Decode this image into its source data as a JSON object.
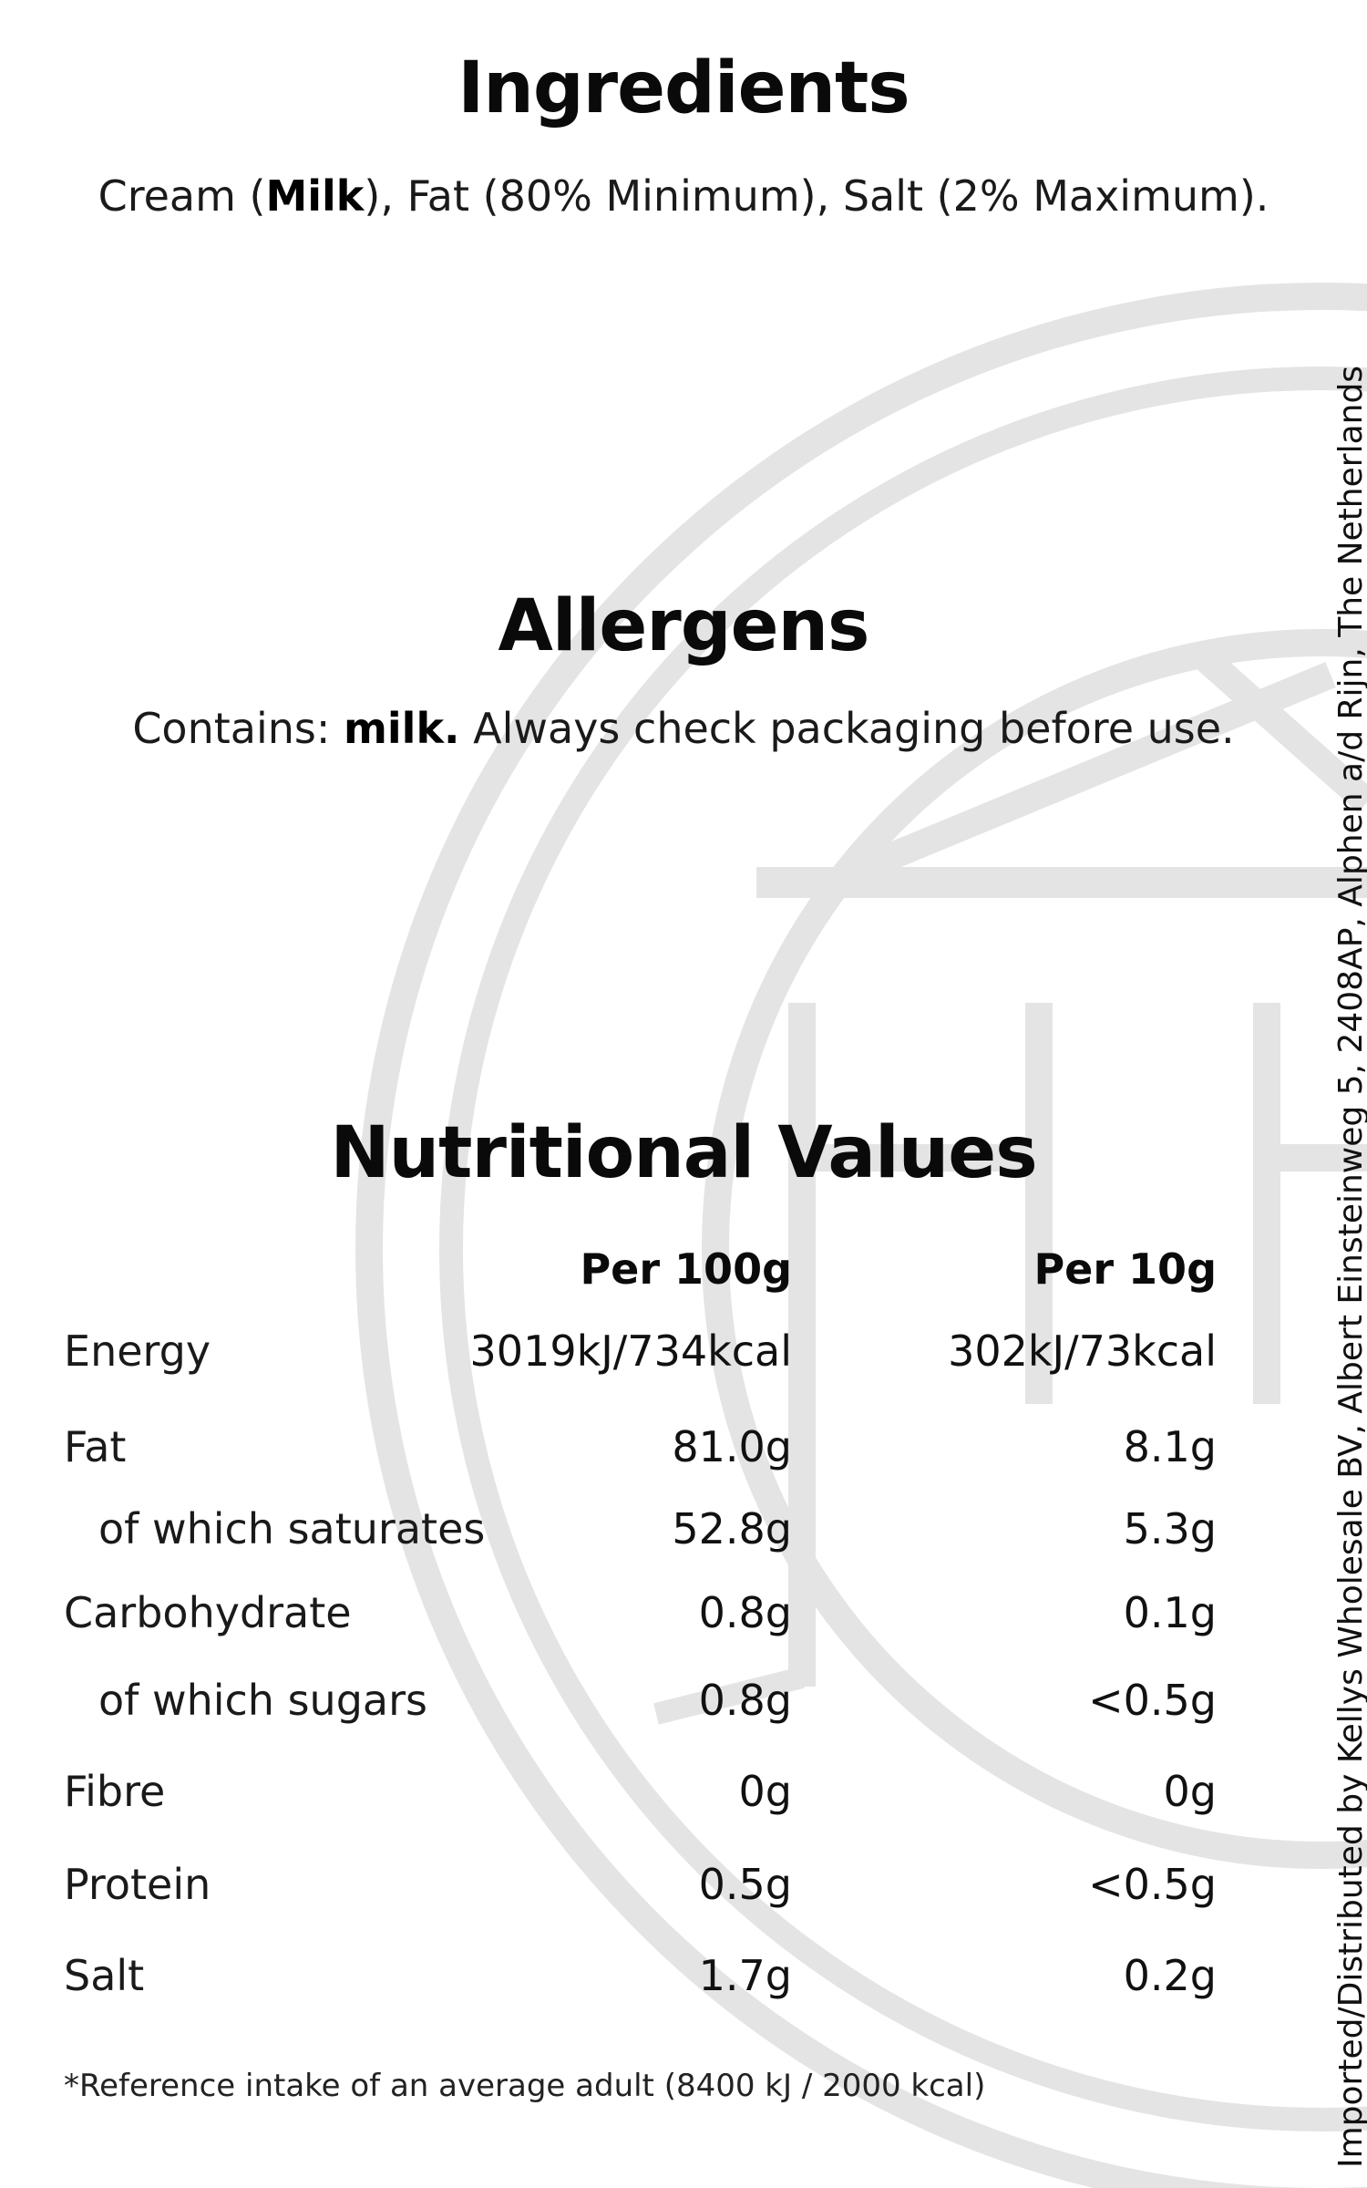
{
  "ingredients": {
    "heading": "Ingredients",
    "text_1": "Cream (",
    "allergen_1": "Milk",
    "text_2": "), Fat (80% Minimum), Salt (2% Maximum)."
  },
  "allergens": {
    "heading": "Allergens",
    "prefix": "Contains: ",
    "allergen": "milk.",
    "suffix": " Always check packaging before use."
  },
  "nutrition": {
    "heading": "Nutritional Values",
    "columns": [
      "Per 100g",
      "Per 10g"
    ],
    "rows": [
      {
        "label": "Energy",
        "per100": "3019kJ/734kcal",
        "per10": "302kJ/73kcal"
      },
      {
        "label": "Fat",
        "per100": "81.0g",
        "per10": "8.1g"
      },
      {
        "label": "of which saturates",
        "per100": "52.8g",
        "per10": "5.3g"
      },
      {
        "label": "Carbohydrate",
        "per100": "0.8g",
        "per10": "0.1g"
      },
      {
        "label": "of which sugars",
        "per100": "0.8g",
        "per10": "<0.5g"
      },
      {
        "label": "Fibre",
        "per100": "0g",
        "per10": "0g"
      },
      {
        "label": "Protein",
        "per100": "0.5g",
        "per10": "<0.5g"
      },
      {
        "label": "Salt",
        "per100": "1.7g",
        "per10": "0.2g"
      }
    ],
    "footnote": "*Reference intake of an average adult (8400 kJ / 2000 kcal)"
  },
  "distributor": "Imported/Distributed by Kellys Wholesale BV, Albert Einsteinweg 5, 2408AP, Alphen a/d Rijn, The Netherlands",
  "watermark": {
    "icon": "kellys-logo-watermark",
    "color": "#e4e4e4"
  }
}
